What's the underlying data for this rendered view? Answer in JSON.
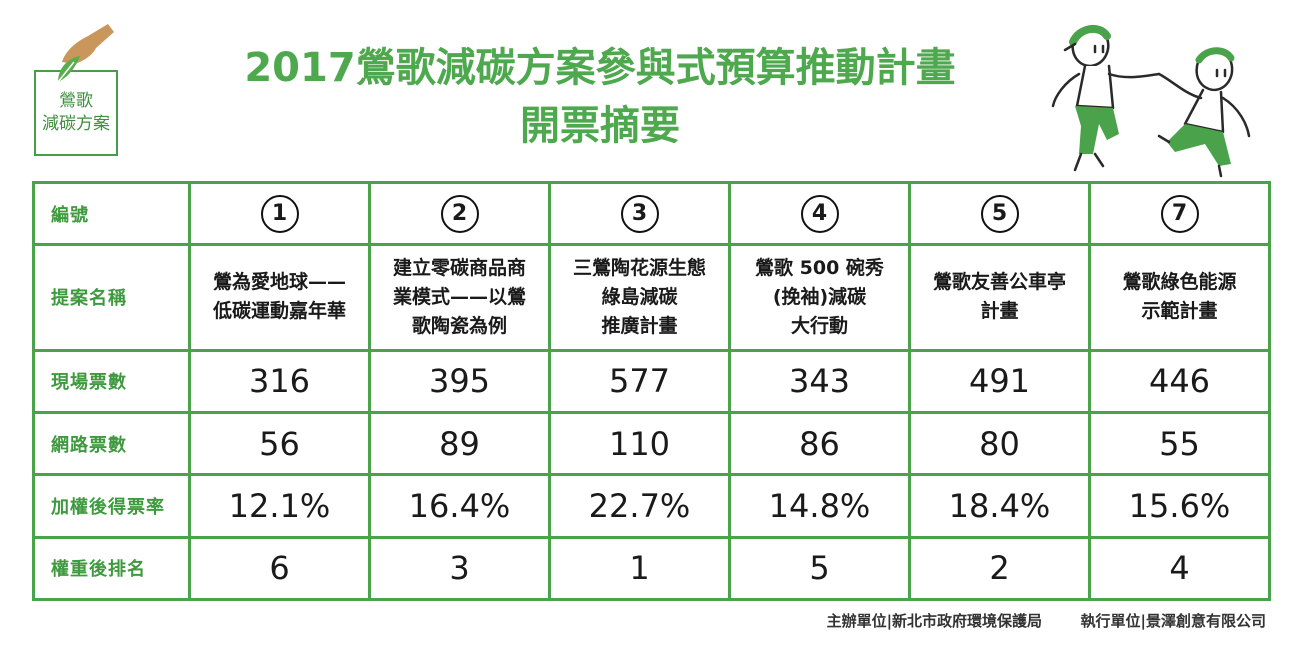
{
  "logo": {
    "line1": "鶯歌",
    "line2": "減碳方案"
  },
  "title": {
    "line1": "2017鶯歌減碳方案參與式預算推動計畫",
    "line2": "開票摘要"
  },
  "colors": {
    "accent": "#4aa34a",
    "title": "#4ea84e",
    "hand": "#c9975b",
    "leaf": "#5aad4f"
  },
  "table": {
    "row_labels": [
      "編號",
      "提案名稱",
      "現場票數",
      "網路票數",
      "加權後得票率",
      "權重後排名"
    ],
    "proposals": [
      {
        "id": "1",
        "name": [
          "鶯為愛地球——",
          "低碳運動嘉年華"
        ],
        "onsite": "316",
        "online": "56",
        "rate": "12.1%",
        "rank": "6"
      },
      {
        "id": "2",
        "name": [
          "建立零碳商品商",
          "業模式——以鶯",
          "歌陶瓷為例"
        ],
        "onsite": "395",
        "online": "89",
        "rate": "16.4%",
        "rank": "3"
      },
      {
        "id": "3",
        "name": [
          "三鶯陶花源生態",
          "綠島減碳",
          "推廣計畫"
        ],
        "onsite": "577",
        "online": "110",
        "rate": "22.7%",
        "rank": "1"
      },
      {
        "id": "4",
        "name": [
          "鶯歌 500 碗秀",
          "(挽袖)減碳",
          "大行動"
        ],
        "onsite": "343",
        "online": "86",
        "rate": "14.8%",
        "rank": "5"
      },
      {
        "id": "5",
        "name": [
          "鶯歌友善公車亭",
          "計畫"
        ],
        "onsite": "491",
        "online": "80",
        "rate": "18.4%",
        "rank": "2"
      },
      {
        "id": "7",
        "name": [
          "鶯歌綠色能源",
          "示範計畫"
        ],
        "onsite": "446",
        "online": "55",
        "rate": "15.6%",
        "rank": "4"
      }
    ]
  },
  "footer": {
    "organizer": "主辦單位|新北市政府環境保護局",
    "executor": "執行單位|景澤創意有限公司"
  }
}
